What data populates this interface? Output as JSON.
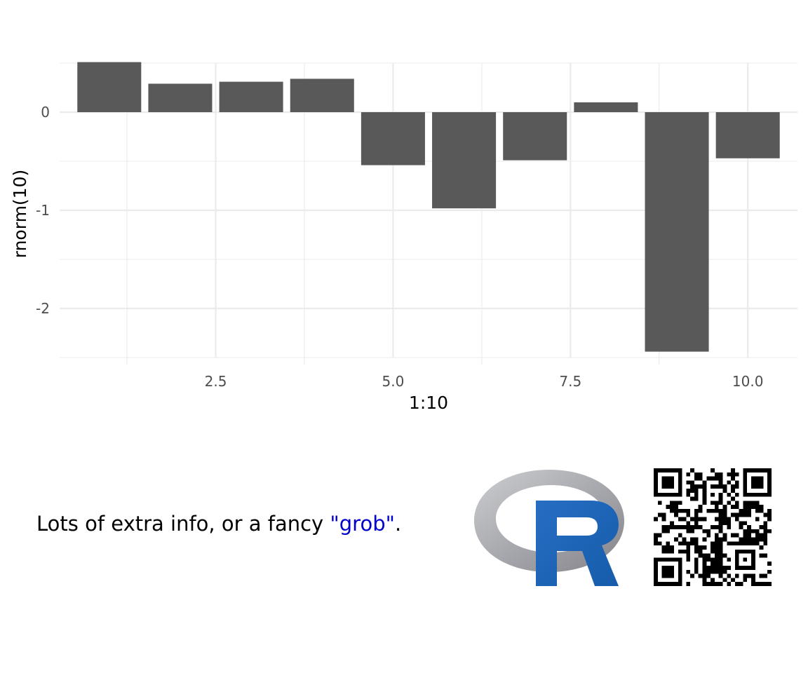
{
  "chart_data": {
    "type": "bar",
    "x": [
      1,
      2,
      3,
      4,
      5,
      6,
      7,
      8,
      9,
      10
    ],
    "values": [
      0.51,
      0.29,
      0.31,
      0.34,
      -0.54,
      -0.98,
      -0.49,
      0.1,
      -2.44,
      -0.47
    ],
    "xlabel": "1:10",
    "ylabel": "rnorm(10)",
    "xticks": [
      2.5,
      5.0,
      7.5,
      10.0
    ],
    "xtick_labels": [
      "2.5",
      "5.0",
      "7.5",
      "10.0"
    ],
    "yticks": [
      0,
      -1,
      -2
    ],
    "ytick_labels": [
      "0",
      "-1",
      "-2"
    ],
    "xlim": [
      0.3,
      10.7
    ],
    "ylim": [
      -2.5,
      0.5
    ],
    "grid": true,
    "bar_color": "#595959",
    "grid_color": "#ebebeb"
  },
  "caption": {
    "before": "Lots of extra info, or a fancy ",
    "highlight": "\"grob\"",
    "after": ".",
    "highlight_color": "#0000cd"
  },
  "logo_icon": "r-logo-icon",
  "qr_icon": "qr-code-icon"
}
